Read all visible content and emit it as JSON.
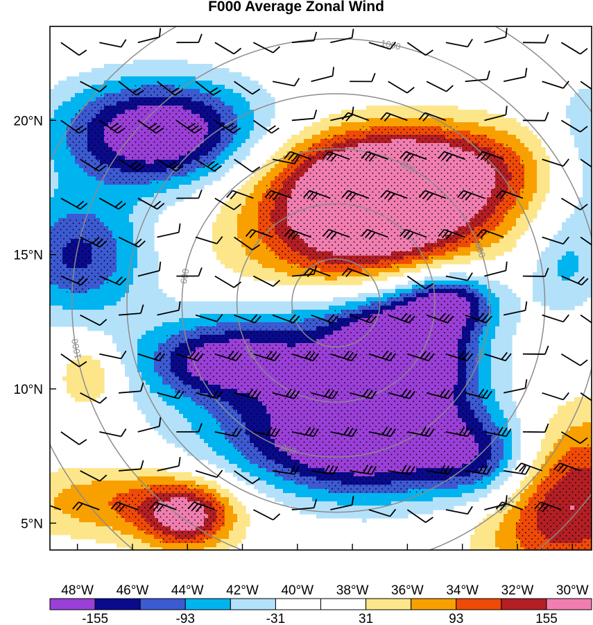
{
  "chart_data": {
    "type": "heatmap",
    "title": "F000 Average Zonal Wind",
    "x_ticks": [
      "48°W",
      "46°W",
      "44°W",
      "42°W",
      "40°W",
      "38°W",
      "36°W",
      "34°W",
      "32°W",
      "30°W"
    ],
    "y_ticks": [
      "20°N",
      "15°N",
      "10°N",
      "5°N"
    ],
    "xlim": [
      -49.0,
      -29.3
    ],
    "ylim": [
      4.0,
      23.5
    ],
    "colorbar": {
      "levels": [
        -186,
        -155,
        -124,
        -93,
        -62,
        -31,
        0,
        31,
        62,
        93,
        124,
        155,
        186
      ],
      "tick_labels": [
        "-155",
        "-93",
        "-31",
        "31",
        "93",
        "155"
      ],
      "colors": [
        "#9a3fd8",
        "#0a0a8c",
        "#3c5ad2",
        "#00b4f0",
        "#b4e1fa",
        "#ffffff",
        "#ffffff",
        "#fde68a",
        "#f8a000",
        "#f04a08",
        "#b31f24",
        "#f17eb0"
      ]
    },
    "fields": [
      {
        "center": [
          -45.0,
          19.5
        ],
        "radius": [
          2.6,
          1.4
        ],
        "value": -210
      },
      {
        "center": [
          -48.0,
          15.0
        ],
        "radius": [
          1.8,
          1.6
        ],
        "value": -130
      },
      {
        "center": [
          -36.0,
          18.3
        ],
        "radius": [
          3.6,
          1.2
        ],
        "value": 165
      },
      {
        "center": [
          -36.6,
          16.8
        ],
        "radius": [
          2.8,
          1.4
        ],
        "value": 150
      },
      {
        "center": [
          -38.0,
          16.0
        ],
        "radius": [
          3.0,
          1.2
        ],
        "value": 110
      },
      {
        "center": [
          -36.2,
          11.3
        ],
        "radius": [
          1.6,
          1.4
        ],
        "value": -210
      },
      {
        "center": [
          -34.4,
          13.3
        ],
        "radius": [
          1.2,
          0.8
        ],
        "value": -140
      },
      {
        "center": [
          -37.6,
          8.0
        ],
        "radius": [
          3.6,
          1.5
        ],
        "value": -210
      },
      {
        "center": [
          -39.6,
          11.2
        ],
        "radius": [
          4.0,
          1.6
        ],
        "value": -120
      },
      {
        "center": [
          -43.0,
          11.0
        ],
        "radius": [
          1.8,
          0.9
        ],
        "value": -100
      },
      {
        "center": [
          -33.0,
          7.2
        ],
        "radius": [
          1.4,
          1.2
        ],
        "value": -110
      },
      {
        "center": [
          -30.3,
          6.0
        ],
        "radius": [
          2.3,
          2.3
        ],
        "value": 170
      },
      {
        "center": [
          -44.0,
          5.2
        ],
        "radius": [
          1.2,
          0.9
        ],
        "value": 140
      },
      {
        "center": [
          -46.3,
          5.8
        ],
        "radius": [
          3.0,
          1.0
        ],
        "value": 90
      },
      {
        "center": [
          -47.6,
          10.5
        ],
        "radius": [
          0.8,
          0.9
        ],
        "value": 80
      },
      {
        "center": [
          -29.5,
          18.5
        ],
        "radius": [
          1.2,
          2.2
        ],
        "value": -70
      },
      {
        "center": [
          -30.3,
          14.5
        ],
        "radius": [
          1.0,
          1.2
        ],
        "value": -60
      },
      {
        "center": [
          -39.0,
          14.3
        ],
        "radius": [
          3.0,
          0.9
        ],
        "value": 45
      }
    ],
    "height_contours": {
      "center": [
        -38.6,
        13.2
      ],
      "levels": [
        "200",
        "400",
        "600",
        "800",
        "1000",
        "1200"
      ],
      "radii_deg": [
        1.6,
        3.6,
        5.6,
        7.6,
        9.6,
        11.6
      ],
      "labels": [
        "200",
        "600",
        "1000"
      ]
    },
    "wind_barbs": {
      "description": "wind barbs on a regular grid",
      "grid_spacing_deg": [
        1.4,
        1.45
      ]
    },
    "stippling": "significance dots over |u| > 93"
  }
}
